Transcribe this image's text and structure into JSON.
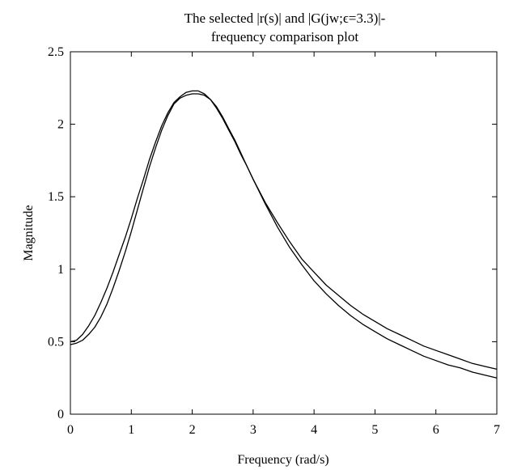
{
  "chart_data": {
    "type": "line",
    "title_line1": "The selected |r(s)| and |G(jw;ϵ=3.3)|-",
    "title_line2": "frequency comparison plot",
    "xlabel": "Frequency (rad/s)",
    "ylabel": "Magnitude",
    "xlim": [
      0,
      7
    ],
    "ylim": [
      0,
      2.5
    ],
    "xticks": [
      0,
      1,
      2,
      3,
      4,
      5,
      6,
      7
    ],
    "yticks": [
      0,
      0.5,
      1,
      1.5,
      2,
      2.5
    ],
    "ytick_labels": [
      "0",
      "0.5",
      "1",
      "1.5",
      "2",
      "2.5"
    ],
    "grid": false,
    "series": [
      {
        "x": [
          0,
          0.1,
          0.2,
          0.3,
          0.4,
          0.5,
          0.6,
          0.7,
          0.8,
          0.9,
          1.0,
          1.1,
          1.2,
          1.3,
          1.4,
          1.5,
          1.6,
          1.7,
          1.8,
          1.9,
          2.0,
          2.1,
          2.2,
          2.3,
          2.4,
          2.5,
          2.6,
          2.7,
          2.8,
          2.9,
          3.0,
          3.2,
          3.4,
          3.6,
          3.8,
          4.0,
          4.2,
          4.4,
          4.6,
          4.8,
          5.0,
          5.2,
          5.4,
          5.6,
          5.8,
          6.0,
          6.2,
          6.4,
          6.6,
          6.8,
          7.0
        ],
        "y": [
          0.5,
          0.51,
          0.55,
          0.61,
          0.68,
          0.77,
          0.87,
          0.98,
          1.1,
          1.22,
          1.35,
          1.49,
          1.62,
          1.76,
          1.88,
          1.99,
          2.08,
          2.15,
          2.19,
          2.22,
          2.23,
          2.23,
          2.21,
          2.17,
          2.11,
          2.04,
          1.96,
          1.88,
          1.79,
          1.71,
          1.62,
          1.46,
          1.32,
          1.19,
          1.07,
          0.98,
          0.89,
          0.82,
          0.75,
          0.69,
          0.64,
          0.59,
          0.55,
          0.51,
          0.47,
          0.44,
          0.41,
          0.38,
          0.35,
          0.33,
          0.31
        ]
      },
      {
        "x": [
          0,
          0.1,
          0.2,
          0.3,
          0.4,
          0.5,
          0.6,
          0.7,
          0.8,
          0.9,
          1.0,
          1.1,
          1.2,
          1.3,
          1.4,
          1.5,
          1.6,
          1.7,
          1.8,
          1.9,
          2.0,
          2.1,
          2.2,
          2.3,
          2.4,
          2.5,
          2.6,
          2.7,
          2.8,
          2.9,
          3.0,
          3.2,
          3.4,
          3.6,
          3.8,
          4.0,
          4.2,
          4.4,
          4.6,
          4.8,
          5.0,
          5.2,
          5.4,
          5.6,
          5.8,
          6.0,
          6.2,
          6.4,
          6.6,
          6.8,
          7.0
        ],
        "y": [
          0.48,
          0.49,
          0.51,
          0.55,
          0.6,
          0.67,
          0.76,
          0.87,
          0.99,
          1.12,
          1.26,
          1.41,
          1.56,
          1.71,
          1.84,
          1.96,
          2.06,
          2.14,
          2.18,
          2.2,
          2.21,
          2.21,
          2.2,
          2.17,
          2.12,
          2.05,
          1.97,
          1.89,
          1.8,
          1.71,
          1.62,
          1.45,
          1.29,
          1.15,
          1.03,
          0.92,
          0.83,
          0.75,
          0.68,
          0.62,
          0.57,
          0.52,
          0.48,
          0.44,
          0.4,
          0.37,
          0.34,
          0.32,
          0.29,
          0.27,
          0.25
        ]
      }
    ]
  }
}
